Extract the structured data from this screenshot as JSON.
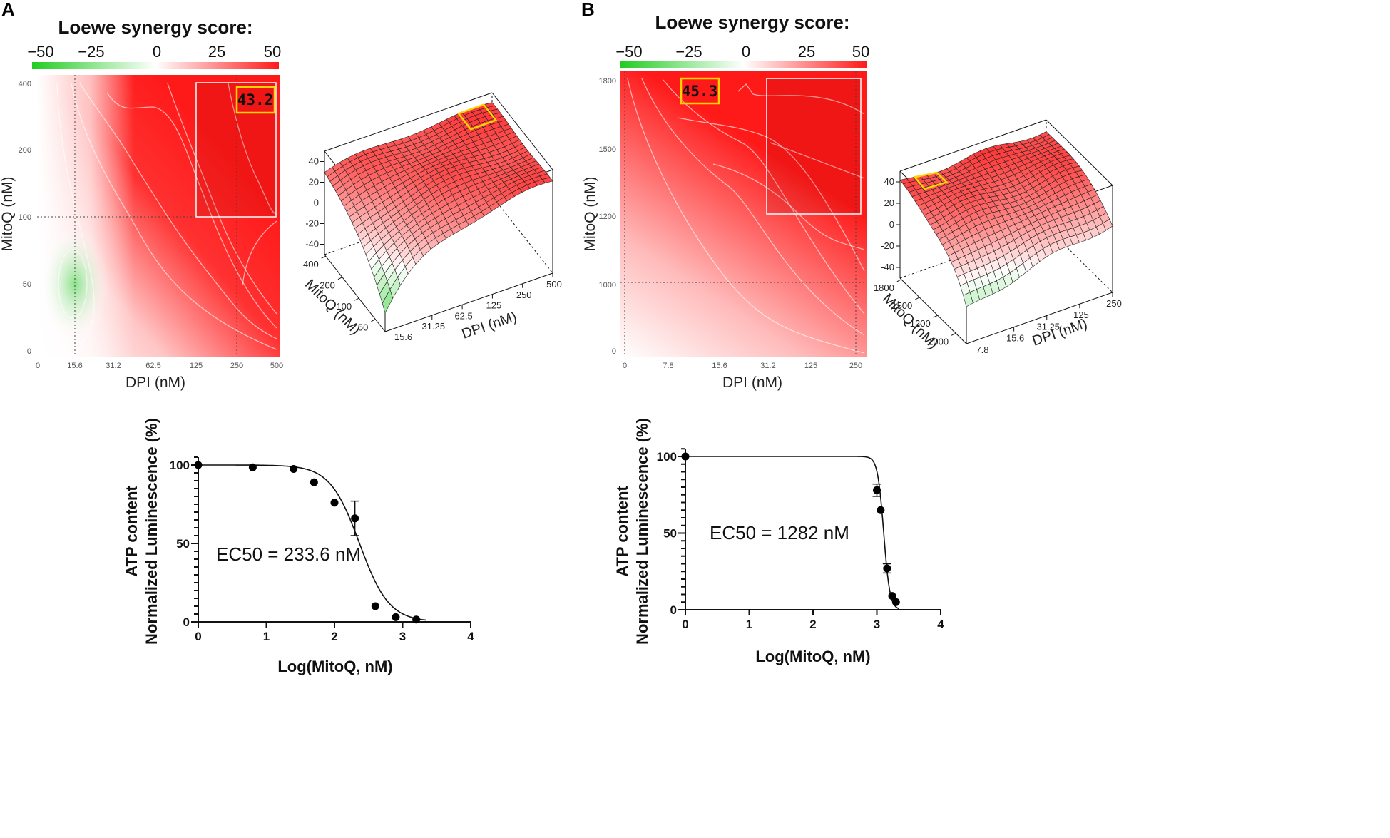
{
  "panels": {
    "a": "A",
    "b": "B"
  },
  "colors": {
    "red": "#ff1a1a",
    "green": "#22cc22",
    "highlight": "#ffd400",
    "white": "#ffffff"
  },
  "chart_data": [
    {
      "type": "heatmap",
      "panel": "A",
      "title": "Loewe synergy score:",
      "colorbar_ticks": [
        "−50",
        "−25",
        "0",
        "25",
        "50"
      ],
      "colorbar_range": [
        -50,
        50
      ],
      "xlabel": "DPI (nM)",
      "ylabel": "MitoQ (nM)",
      "x_ticks": [
        "0",
        "15.6",
        "31.2",
        "62.5",
        "125",
        "250",
        "500"
      ],
      "y_ticks": [
        "400",
        "200",
        "100",
        "50",
        "0"
      ],
      "max_region_score": "43.2"
    },
    {
      "type": "surface",
      "panel": "A",
      "xlabel": "DPI (nM)",
      "ylabel": "MitoQ (nM)",
      "x_ticks": [
        "15.6",
        "31.25",
        "62.5",
        "125",
        "250",
        "500"
      ],
      "y_ticks": [
        "400",
        "200",
        "100",
        "50"
      ],
      "z_ticks": [
        "40",
        "20",
        "0",
        "-20",
        "-40"
      ]
    },
    {
      "type": "line",
      "panel": "A",
      "xlabel": "Log(MitoQ, nM)",
      "ylabel_line1": "ATP content",
      "ylabel_line2": "Normalized Luminescence (%)",
      "x_ticks": [
        "0",
        "1",
        "2",
        "3",
        "4"
      ],
      "y_ticks": [
        "0",
        "50",
        "100"
      ],
      "xlim": [
        0,
        4
      ],
      "ylim": [
        0,
        105
      ],
      "annotation": "EC50 = 233.6 nM",
      "ec50_log": 2.368,
      "hill": -2.0,
      "top": 100,
      "bottom": 0,
      "points": [
        {
          "x": 0,
          "y": 100
        },
        {
          "x": 0.8,
          "y": 98.5
        },
        {
          "x": 1.4,
          "y": 97.5
        },
        {
          "x": 1.7,
          "y": 89
        },
        {
          "x": 2.0,
          "y": 76
        },
        {
          "x": 2.3,
          "y": 66,
          "err": 11
        },
        {
          "x": 2.6,
          "y": 10
        },
        {
          "x": 2.9,
          "y": 3
        },
        {
          "x": 3.2,
          "y": 1.5
        }
      ]
    },
    {
      "type": "heatmap",
      "panel": "B",
      "title": "Loewe synergy score:",
      "colorbar_ticks": [
        "−50",
        "−25",
        "0",
        "25",
        "50"
      ],
      "colorbar_range": [
        -50,
        50
      ],
      "xlabel": "DPI (nM)",
      "ylabel": "MitoQ (nM)",
      "x_ticks": [
        "0",
        "7.8",
        "15.6",
        "31.2",
        "125",
        "250"
      ],
      "y_ticks": [
        "1800",
        "1500",
        "1200",
        "1000",
        "0"
      ],
      "max_region_score": "45.3"
    },
    {
      "type": "surface",
      "panel": "B",
      "xlabel": "DPI (nM)",
      "ylabel": "MitoQ (nM)",
      "x_ticks": [
        "7.8",
        "15.6",
        "31.25",
        "125",
        "250"
      ],
      "y_ticks": [
        "1800",
        "1500",
        "1200",
        "1000"
      ],
      "z_ticks": [
        "40",
        "20",
        "0",
        "-20",
        "-40"
      ]
    },
    {
      "type": "line",
      "panel": "B",
      "xlabel": "Log(MitoQ, nM)",
      "ylabel_line1": "ATP content",
      "ylabel_line2": "Normalized Luminescence (%)",
      "x_ticks": [
        "0",
        "1",
        "2",
        "3",
        "4"
      ],
      "y_ticks": [
        "0",
        "50",
        "100"
      ],
      "xlim": [
        0,
        4
      ],
      "ylim": [
        0,
        105
      ],
      "annotation": "EC50 = 1282 nM",
      "ec50_log": 3.108,
      "hill": -9.0,
      "top": 100,
      "bottom": 0,
      "points": [
        {
          "x": 0,
          "y": 100
        },
        {
          "x": 3.0,
          "y": 78,
          "err": 4
        },
        {
          "x": 3.06,
          "y": 65
        },
        {
          "x": 3.16,
          "y": 27,
          "err": 3
        },
        {
          "x": 3.24,
          "y": 9
        },
        {
          "x": 3.3,
          "y": 5
        }
      ]
    }
  ]
}
